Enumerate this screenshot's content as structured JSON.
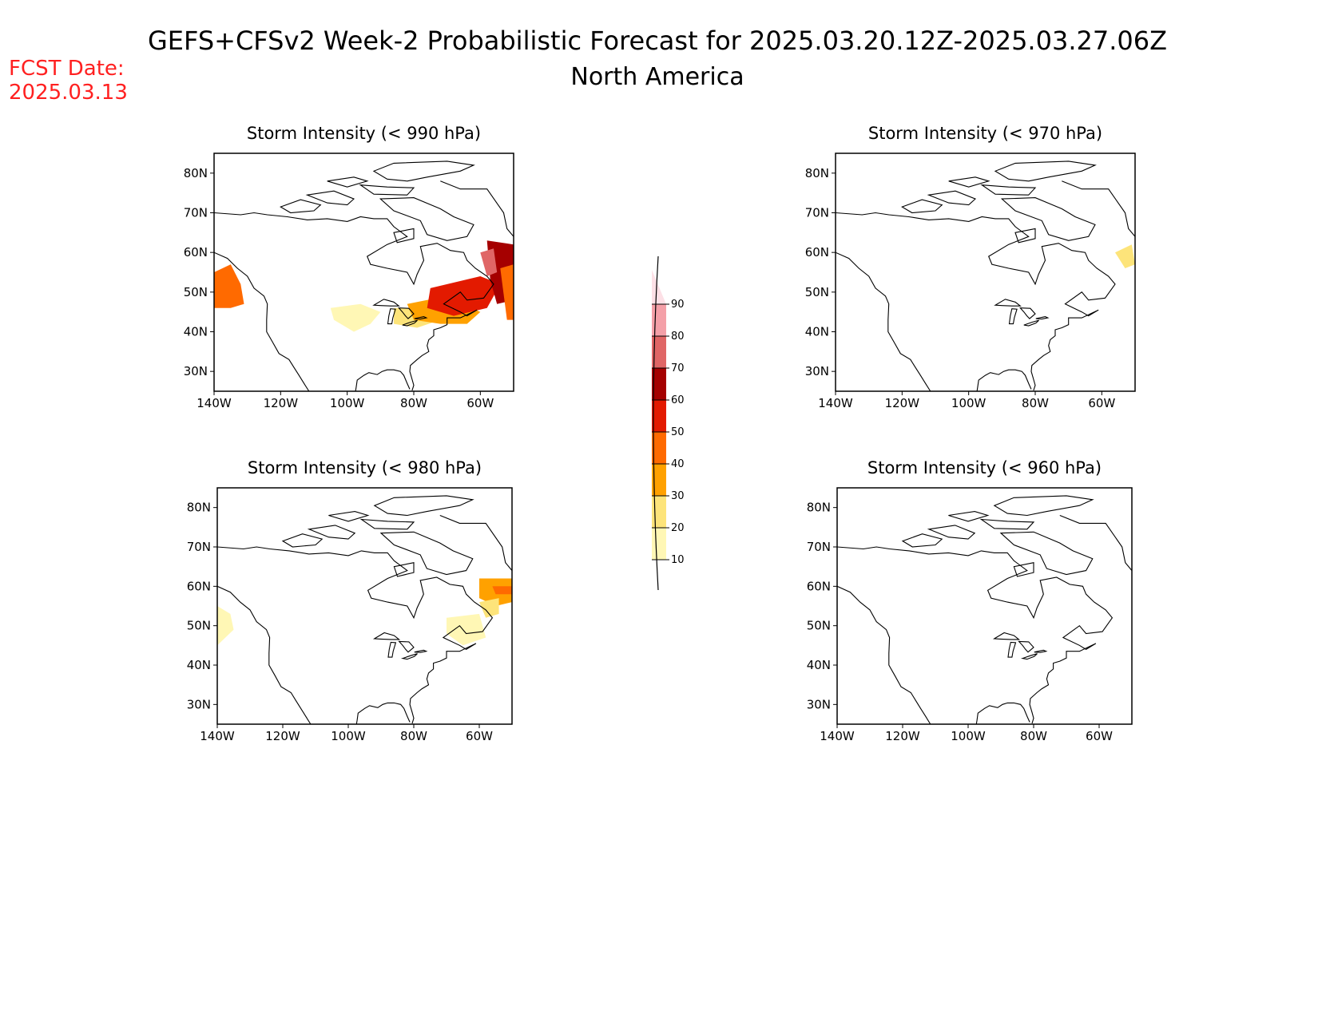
{
  "header": {
    "title": "GEFS+CFSv2 Week-2 Probabilistic Forecast for 2025.03.20.12Z-2025.03.27.06Z",
    "subtitle": "North America",
    "fcst_label": "FCST Date:",
    "fcst_date": "2025.03.13"
  },
  "colors": {
    "c10": "#fff7b5",
    "c20": "#fde47a",
    "c30": "#ffa100",
    "c40": "#ff6a00",
    "c50": "#e31a00",
    "c60": "#a50000",
    "c70": "#e06666",
    "c80": "#f4a0a8",
    "c90": "#fde0e6"
  },
  "colorbar": {
    "labels": [
      "10",
      "20",
      "30",
      "40",
      "50",
      "60",
      "70",
      "80",
      "90"
    ]
  },
  "axes": {
    "lon_labels": [
      "140W",
      "120W",
      "100W",
      "80W",
      "60W"
    ],
    "lat_labels": [
      "30N",
      "40N",
      "50N",
      "60N",
      "70N",
      "80N"
    ]
  },
  "panels": [
    {
      "title": "Storm Intensity (< 990 hPa)",
      "regions": [
        {
          "level": "c60",
          "poly": [
            [
              -140,
              53
            ],
            [
              -136,
              55
            ],
            [
              -134,
              52
            ],
            [
              -133,
              48
            ],
            [
              -137,
              47
            ],
            [
              -140,
              48
            ]
          ]
        },
        {
          "level": "c40",
          "poly": [
            [
              -140,
              55
            ],
            [
              -135,
              57
            ],
            [
              -132,
              52
            ],
            [
              -131,
              47
            ],
            [
              -135,
              46
            ],
            [
              -140,
              46
            ]
          ]
        },
        {
          "level": "c10",
          "poly": [
            [
              -105,
              46
            ],
            [
              -96,
              47
            ],
            [
              -90,
              45
            ],
            [
              -93,
              42
            ],
            [
              -98,
              40
            ],
            [
              -104,
              43
            ]
          ]
        },
        {
          "level": "c20",
          "poly": [
            [
              -86,
              46
            ],
            [
              -76,
              46
            ],
            [
              -72,
              43
            ],
            [
              -79,
              41
            ],
            [
              -86,
              42
            ]
          ]
        },
        {
          "level": "c30",
          "poly": [
            [
              -82,
              47
            ],
            [
              -70,
              49
            ],
            [
              -60,
              45
            ],
            [
              -64,
              42
            ],
            [
              -72,
              42
            ],
            [
              -80,
              43
            ]
          ]
        },
        {
          "level": "c50",
          "poly": [
            [
              -75,
              51
            ],
            [
              -60,
              54
            ],
            [
              -54,
              52
            ],
            [
              -58,
              46
            ],
            [
              -68,
              44
            ],
            [
              -76,
              46
            ]
          ]
        },
        {
          "level": "c60",
          "poly": [
            [
              -58,
              63
            ],
            [
              -50,
              62
            ],
            [
              -50,
              48
            ],
            [
              -55,
              47
            ],
            [
              -57,
              53
            ]
          ]
        },
        {
          "level": "c70",
          "poly": [
            [
              -60,
              60
            ],
            [
              -56,
              61
            ],
            [
              -55,
              55
            ],
            [
              -58,
              54
            ]
          ]
        },
        {
          "level": "c40",
          "poly": [
            [
              -54,
              56
            ],
            [
              -50,
              57
            ],
            [
              -50,
              43
            ],
            [
              -52,
              43
            ]
          ]
        }
      ]
    },
    {
      "title": "Storm Intensity (< 970 hPa)",
      "regions": [
        {
          "level": "c20",
          "poly": [
            [
              -56,
              60
            ],
            [
              -51,
              62
            ],
            [
              -50,
              57
            ],
            [
              -53,
              56
            ]
          ]
        }
      ]
    },
    {
      "title": "Storm Intensity (< 980 hPa)",
      "regions": [
        {
          "level": "c10",
          "poly": [
            [
              -140,
              55
            ],
            [
              -136,
              53
            ],
            [
              -135,
              49
            ],
            [
              -140,
              45
            ]
          ]
        },
        {
          "level": "c10",
          "poly": [
            [
              -70,
              52
            ],
            [
              -60,
              53
            ],
            [
              -58,
              47
            ],
            [
              -65,
              45
            ],
            [
              -70,
              48
            ]
          ]
        },
        {
          "level": "c30",
          "poly": [
            [
              -60,
              62
            ],
            [
              -50,
              62
            ],
            [
              -50,
              56
            ],
            [
              -55,
              55
            ],
            [
              -60,
              57
            ]
          ]
        },
        {
          "level": "c40",
          "poly": [
            [
              -56,
              60
            ],
            [
              -50,
              60
            ],
            [
              -50,
              58
            ],
            [
              -55,
              58
            ]
          ]
        },
        {
          "level": "c20",
          "poly": [
            [
              -60,
              56
            ],
            [
              -54,
              57
            ],
            [
              -54,
              53
            ],
            [
              -58,
              52
            ]
          ]
        }
      ]
    },
    {
      "title": "Storm Intensity (< 960 hPa)",
      "regions": []
    }
  ]
}
